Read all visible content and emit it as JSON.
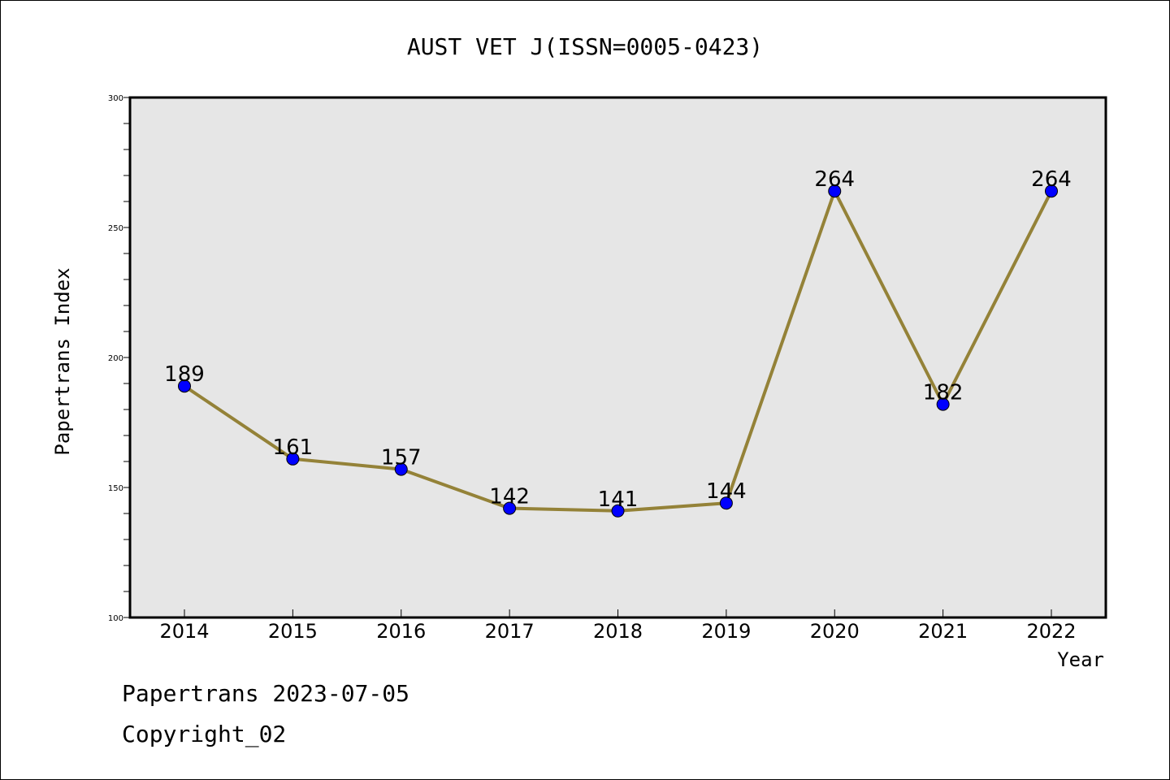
{
  "chart_data": {
    "type": "line",
    "title": "AUST VET J(ISSN=0005-0423)",
    "xlabel": "Year",
    "ylabel": "Papertrans Index",
    "categories": [
      "2014",
      "2015",
      "2016",
      "2017",
      "2018",
      "2019",
      "2020",
      "2021",
      "2022"
    ],
    "values": [
      189,
      161,
      157,
      142,
      141,
      144,
      264,
      182,
      264
    ],
    "ylim": [
      100,
      300
    ],
    "yticks": [
      "100",
      "150",
      "200",
      "250",
      "300"
    ],
    "grid": false,
    "colors": {
      "line": "#948238",
      "marker": "#0000ff",
      "plot_bg": "#e6e6e6"
    }
  },
  "footer": {
    "line1": "Papertrans 2023-07-05",
    "line2": "Copyright_02"
  }
}
